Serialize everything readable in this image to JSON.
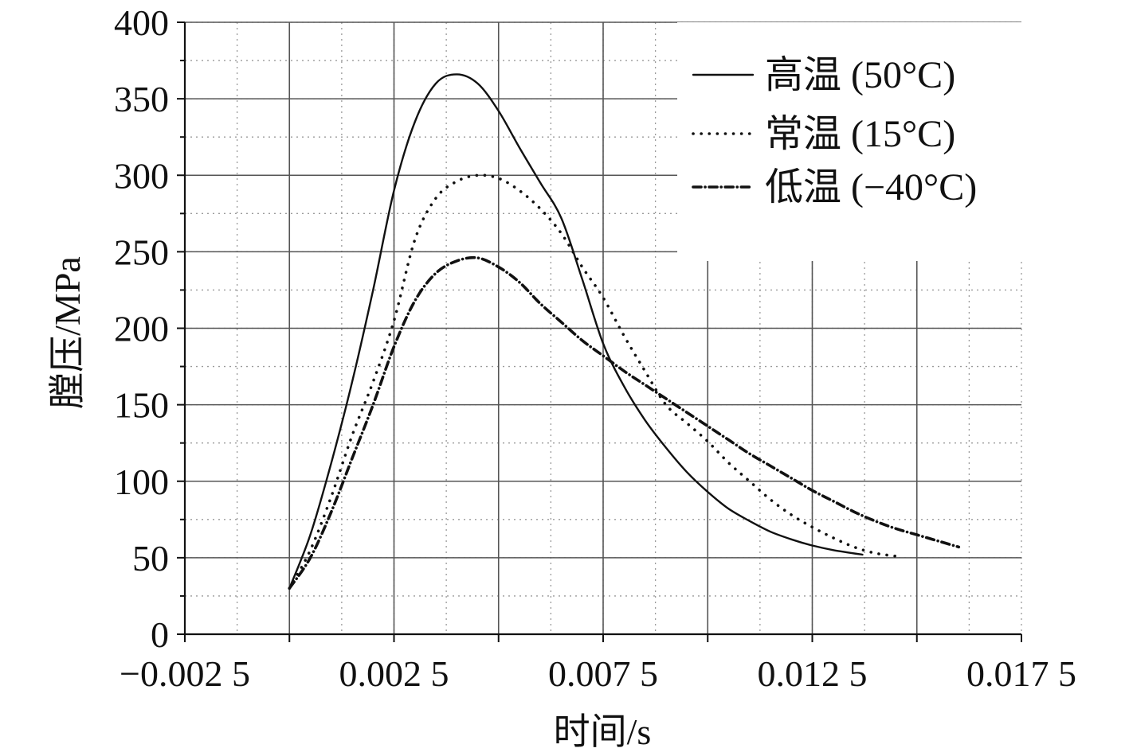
{
  "chart_data": {
    "type": "line",
    "title": "",
    "xlabel": "时间/s",
    "ylabel": "膛压/MPa",
    "xlim": [
      -0.0025,
      0.0175
    ],
    "ylim": [
      0,
      400
    ],
    "x_ticks": [
      -0.0025,
      0.0025,
      0.0075,
      0.0125,
      0.0175
    ],
    "x_tick_labels": [
      "−0.002 5",
      "0.002 5",
      "0.007 5",
      "0.012 5",
      "0.017 5"
    ],
    "y_ticks": [
      0,
      50,
      100,
      150,
      200,
      250,
      300,
      350,
      400
    ],
    "y_tick_labels": [
      "0",
      "50",
      "100",
      "150",
      "200",
      "250",
      "300",
      "350",
      "400"
    ],
    "grid": true,
    "legend_position": "top-right",
    "series": [
      {
        "name": "高温 (50°C)",
        "style": "solid",
        "x": [
          0,
          0.0005,
          0.001,
          0.0015,
          0.002,
          0.0025,
          0.003,
          0.0035,
          0.004,
          0.0045,
          0.005,
          0.0055,
          0.006,
          0.0065,
          0.007,
          0.0075,
          0.008,
          0.0085,
          0.009,
          0.0095,
          0.01,
          0.0105,
          0.011,
          0.0115,
          0.012,
          0.0125,
          0.013,
          0.0137
        ],
        "y": [
          30,
          65,
          112,
          165,
          225,
          290,
          335,
          360,
          366,
          360,
          342,
          318,
          295,
          272,
          232,
          190,
          162,
          140,
          122,
          106,
          93,
          82,
          74,
          67,
          62,
          58,
          55,
          52
        ]
      },
      {
        "name": "常温 (15°C)",
        "style": "dotted",
        "x": [
          0,
          0.0005,
          0.001,
          0.0015,
          0.002,
          0.0025,
          0.003,
          0.0035,
          0.004,
          0.0045,
          0.005,
          0.0055,
          0.006,
          0.0065,
          0.007,
          0.0075,
          0.008,
          0.0085,
          0.009,
          0.0095,
          0.01,
          0.0105,
          0.011,
          0.0115,
          0.012,
          0.0125,
          0.013,
          0.0135,
          0.014,
          0.0145
        ],
        "y": [
          30,
          55,
          90,
          130,
          165,
          205,
          258,
          285,
          296,
          300,
          298,
          290,
          278,
          262,
          240,
          220,
          195,
          172,
          150,
          138,
          126,
          112,
          100,
          88,
          78,
          70,
          63,
          57,
          53,
          51
        ]
      },
      {
        "name": "低温 (−40°C)",
        "style": "dashdot",
        "x": [
          0,
          0.0005,
          0.001,
          0.0015,
          0.002,
          0.0025,
          0.003,
          0.0035,
          0.004,
          0.0045,
          0.005,
          0.0055,
          0.006,
          0.0065,
          0.007,
          0.0075,
          0.008,
          0.0085,
          0.009,
          0.0095,
          0.01,
          0.0105,
          0.011,
          0.0115,
          0.012,
          0.0125,
          0.013,
          0.0135,
          0.014,
          0.0145,
          0.015,
          0.0155,
          0.016
        ],
        "y": [
          30,
          50,
          80,
          115,
          150,
          188,
          218,
          236,
          244,
          246,
          240,
          230,
          216,
          204,
          192,
          182,
          172,
          163,
          154,
          145,
          136,
          127,
          118,
          110,
          102,
          94,
          87,
          80,
          74,
          69,
          65,
          61,
          57
        ]
      }
    ]
  }
}
